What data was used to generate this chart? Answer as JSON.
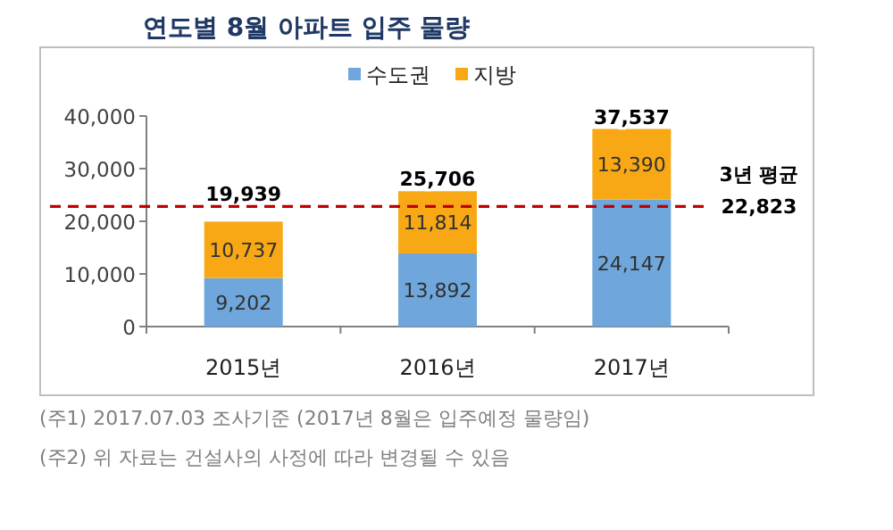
{
  "chart_data": {
    "type": "bar",
    "title": "연도별 8월 아파트 입주 물량",
    "categories": [
      "2015년",
      "2016년",
      "2017년"
    ],
    "stacked": true,
    "series": [
      {
        "name": "수도권",
        "color": "#6fa6db",
        "values": [
          9202,
          13892,
          24147
        ],
        "value_labels": [
          "9,202",
          "13,892",
          "24,147"
        ]
      },
      {
        "name": "지방",
        "color": "#f8a814",
        "values": [
          10737,
          11814,
          13390
        ],
        "value_labels": [
          "10,737",
          "11,814",
          "13,390"
        ]
      }
    ],
    "ylim": [
      0,
      40000
    ],
    "yticks": [
      0,
      {
        "value": 10000,
        "label": "10,000"
      },
      {
        "value": 20000,
        "label": "20,000"
      },
      {
        "value": 30000,
        "label": "30,000"
      },
      {
        "value": 40000,
        "label": "40,000"
      }
    ],
    "totals": [
      "19,939",
      "25,706",
      "37,537"
    ],
    "ref_lines": [
      {
        "axis": "y",
        "value": 22823,
        "label": "3년 평균 22,823",
        "color": "#c00000",
        "line_style": "dashed"
      }
    ],
    "legend": "top",
    "grid": false,
    "annotations": [
      "(주1) 2017.07.03 조사기준 (2017년 8월은 입주예정 물량임)",
      "(주2) 위 자료는 건설사의 사정에 따라 변경될 수 있음"
    ]
  }
}
